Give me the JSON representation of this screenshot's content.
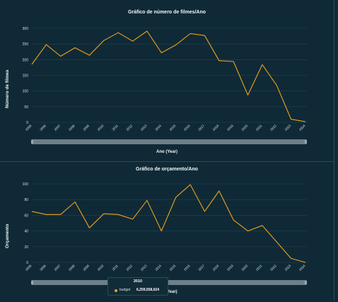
{
  "charts": [
    {
      "title": "Gráfico de número de filmes/Ano",
      "xlabel": "Ano (Year)",
      "ylabel": "Número de filmes"
    },
    {
      "title": "Gráfico de orçamento/Ano",
      "xlabel": "(Year)",
      "ylabel": "Orçamento"
    }
  ],
  "tooltip": {
    "title": "2010",
    "series_name": "budget",
    "value": "6,259,558,024"
  },
  "colors": {
    "line": "#f0a11e",
    "background": "#0f2a36",
    "grid": "#24424f"
  },
  "chart_data": [
    {
      "type": "line",
      "title": "Gráfico de número de filmes/Ano",
      "xlabel": "Ano (Year)",
      "ylabel": "Número de filmes",
      "x": [
        "2005",
        "2006",
        "2007",
        "2008",
        "2009",
        "2010",
        "2011",
        "2012",
        "2013",
        "2014",
        "2015",
        "2016",
        "2017",
        "2018",
        "2019",
        "2020",
        "2021",
        "2022",
        "2023",
        "2024"
      ],
      "series": [
        {
          "values": [
            185,
            248,
            211,
            238,
            214,
            261,
            286,
            259,
            291,
            222,
            247,
            283,
            277,
            197,
            194,
            87,
            184,
            118,
            10,
            2
          ]
        }
      ],
      "yticks": [
        0,
        50,
        100,
        150,
        200,
        250,
        300
      ],
      "ylim": [
        0,
        300
      ],
      "grid": true
    },
    {
      "type": "line",
      "title": "Gráfico de orçamento/Ano",
      "xlabel": "(Year)",
      "ylabel": "Orçamento",
      "x": [
        "2005",
        "2006",
        "2007",
        "2008",
        "2009",
        "2010",
        "2011",
        "2012",
        "2013",
        "2014",
        "2015",
        "2016",
        "2017",
        "2018",
        "2019",
        "2020",
        "2021",
        "2022",
        "2023",
        "2024"
      ],
      "series": [
        {
          "name": "budget",
          "values": [
            65,
            61,
            61,
            77,
            44,
            62,
            61,
            55,
            79,
            40,
            83,
            99,
            65,
            91,
            54,
            40,
            47,
            26,
            5,
            0
          ]
        }
      ],
      "yticks": [
        0,
        20,
        40,
        60,
        80,
        100
      ],
      "ylim": [
        0,
        100
      ],
      "grid": true
    }
  ]
}
